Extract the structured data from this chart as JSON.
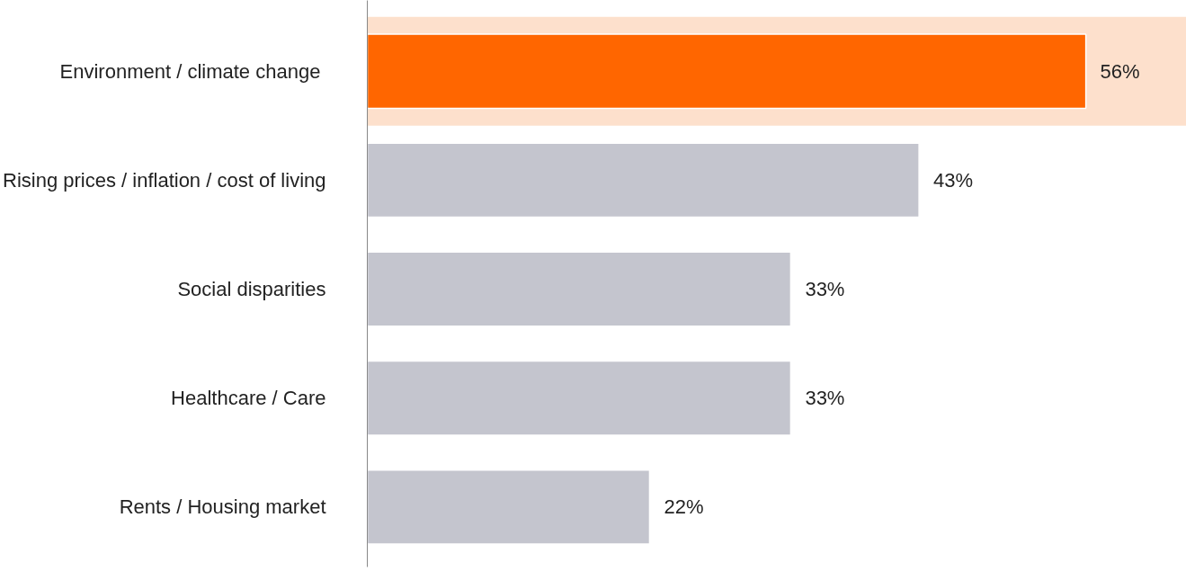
{
  "chart_data": {
    "type": "bar",
    "orientation": "horizontal",
    "tick_labels": "y",
    "categories": [
      "Environment /  climate change",
      "Rising prices / inflation / cost of living",
      "Social disparities",
      "Healthcare / Care",
      "Rents / Housing market"
    ],
    "values": [
      56,
      43,
      33,
      33,
      22
    ],
    "colors": [
      "#ff6600",
      "#c4c5ce",
      "#c4c5ce",
      "#c4c5ce",
      "#c4c5ce"
    ],
    "value_labels": [
      "56%",
      "43%",
      "33%",
      "33%",
      "22%"
    ],
    "bands": [
      {
        "axis": "y",
        "from": "Environment /  climate change",
        "to": "Environment /  climate change",
        "color": "#fde0cc"
      }
    ]
  }
}
